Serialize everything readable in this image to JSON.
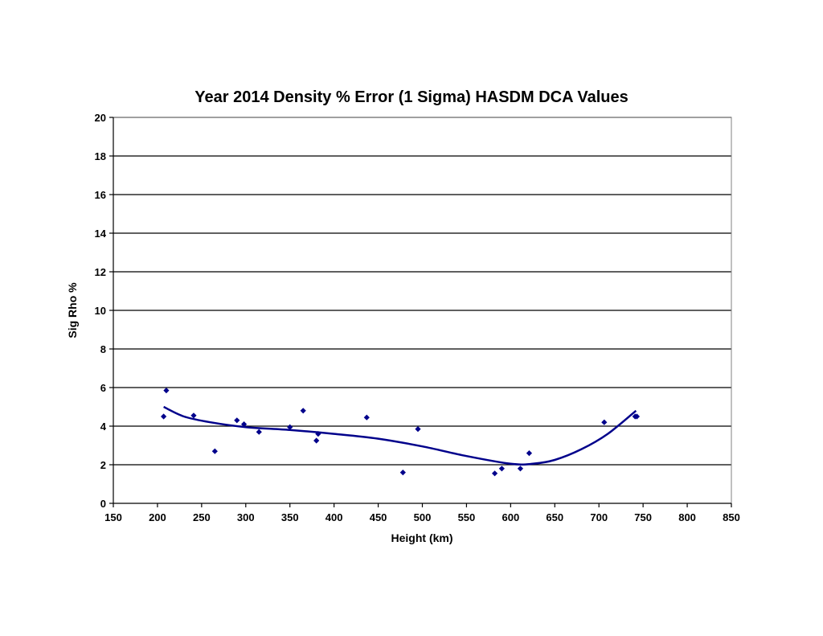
{
  "chart_data": {
    "type": "scatter",
    "title": "Year 2014 Density % Error (1 Sigma) HASDM DCA Values",
    "xlabel": "Height (km)",
    "ylabel": "Sig Rho %",
    "xlim": [
      150,
      850
    ],
    "ylim": [
      0,
      20
    ],
    "xticks": [
      "150",
      "200",
      "250",
      "300",
      "350",
      "400",
      "450",
      "500",
      "550",
      "600",
      "650",
      "700",
      "750",
      "800",
      "850"
    ],
    "yticks": [
      "0",
      "2",
      "4",
      "6",
      "8",
      "10",
      "12",
      "14",
      "16",
      "18",
      "20"
    ],
    "grid": "horizontal",
    "legend": "none",
    "marker_color": "#00008B",
    "trend_color": "#00008B",
    "series": [
      {
        "x": [
          207,
          210,
          241,
          265,
          290,
          298,
          315,
          350,
          365,
          380,
          382,
          437,
          478,
          495,
          582,
          590,
          611,
          621,
          706,
          741,
          743
        ],
        "y": [
          4.5,
          5.85,
          4.55,
          2.7,
          4.3,
          4.1,
          3.7,
          3.95,
          4.8,
          3.25,
          3.6,
          4.45,
          1.6,
          3.85,
          1.55,
          1.8,
          1.8,
          2.6,
          4.2,
          4.5,
          4.5
        ]
      }
    ],
    "trendline": {
      "type": "polynomial",
      "x": [
        207,
        230,
        260,
        300,
        350,
        400,
        450,
        500,
        550,
        600,
        625,
        650,
        680,
        710,
        742
      ],
      "y": [
        5.0,
        4.5,
        4.2,
        3.95,
        3.8,
        3.6,
        3.35,
        2.95,
        2.45,
        2.05,
        2.05,
        2.25,
        2.8,
        3.6,
        4.8
      ]
    }
  }
}
